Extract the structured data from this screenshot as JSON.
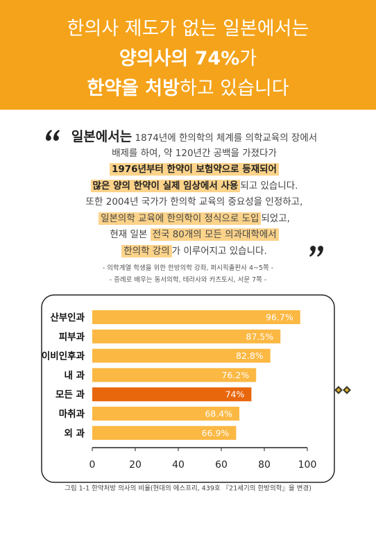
{
  "header": {
    "lines": [
      [
        {
          "text": "한의사 제도가 없는 일본에서는",
          "bold": false
        }
      ],
      [
        {
          "text": "양의사의 74%",
          "bold": true
        },
        {
          "text": "가",
          "bold": false
        }
      ],
      [
        {
          "text": "한약을 처방",
          "bold": true
        },
        {
          "text": "하고 있습니다",
          "bold": false
        }
      ]
    ]
  },
  "quote": {
    "lines": [
      [
        {
          "text": "일본에서는",
          "bold": true,
          "highlight": false,
          "lead": true
        },
        {
          "text": " 1874년에 한의학의 체계를 의학교육의 장에서",
          "bold": false,
          "highlight": false
        }
      ],
      [
        {
          "text": "배제를 하여, 약 120년간 공백을 가졌다가",
          "bold": false,
          "highlight": false
        }
      ],
      [
        {
          "text": "1976년부터 한약이 보험약으로 등재되어",
          "bold": true,
          "highlight": true
        }
      ],
      [
        {
          "text": "많은 양의 한약이 실제 임상에서 사용",
          "bold": true,
          "highlight": true
        },
        {
          "text": "되고 있습니다.",
          "bold": false,
          "highlight": false
        }
      ],
      [
        {
          "text": "또한 2004년 국가가 한의학 교육의 중요성을 인정하고,",
          "bold": false,
          "highlight": false
        }
      ],
      [
        {
          "text": "일본의학 교육에 한의학이 정식으로 도입",
          "bold": false,
          "highlight": true
        },
        {
          "text": "되었고,",
          "bold": false,
          "highlight": false
        }
      ],
      [
        {
          "text": "현재 일본 ",
          "bold": false,
          "highlight": false
        },
        {
          "text": "전국 80개의 모든 의과대학에서",
          "bold": false,
          "highlight": true
        }
      ],
      [
        {
          "text": "한의학 강의",
          "bold": false,
          "highlight": true
        },
        {
          "text": "가 이루어지고 있습니다.",
          "bold": false,
          "highlight": false
        }
      ]
    ],
    "sources": [
      "- 의학계열 학생을 위한 한방의학 강좌, 퍼시픽출판사 4~5쪽 -",
      "- 증례로 배우는 동서의학, 테라사와 카츠토시, 서문 7쪽 -"
    ]
  },
  "chart_data": {
    "type": "hbar",
    "categories": [
      "산부인과",
      "피부과",
      "이비인후과",
      "내 과",
      "모든 과",
      "마취과",
      "외 과"
    ],
    "values": [
      96.7,
      87.5,
      82.8,
      76.2,
      74,
      68.4,
      66.9
    ],
    "value_labels": [
      "96.7%",
      "87.5%",
      "82.8%",
      "76.2%",
      "74%",
      "68.4%",
      "66.9%"
    ],
    "colors": [
      "#fbb843",
      "#fbb843",
      "#fbb843",
      "#fbb843",
      "#e8670c",
      "#fbb843",
      "#fbb843"
    ],
    "xlim": [
      0,
      100
    ],
    "xticks": [
      0,
      20,
      40,
      60,
      80,
      100
    ],
    "caption": "그림 1-1 한약처방 의사의 비율(현대의 에스프리, 439호 『21세기의 한방의학』을 변경)"
  }
}
